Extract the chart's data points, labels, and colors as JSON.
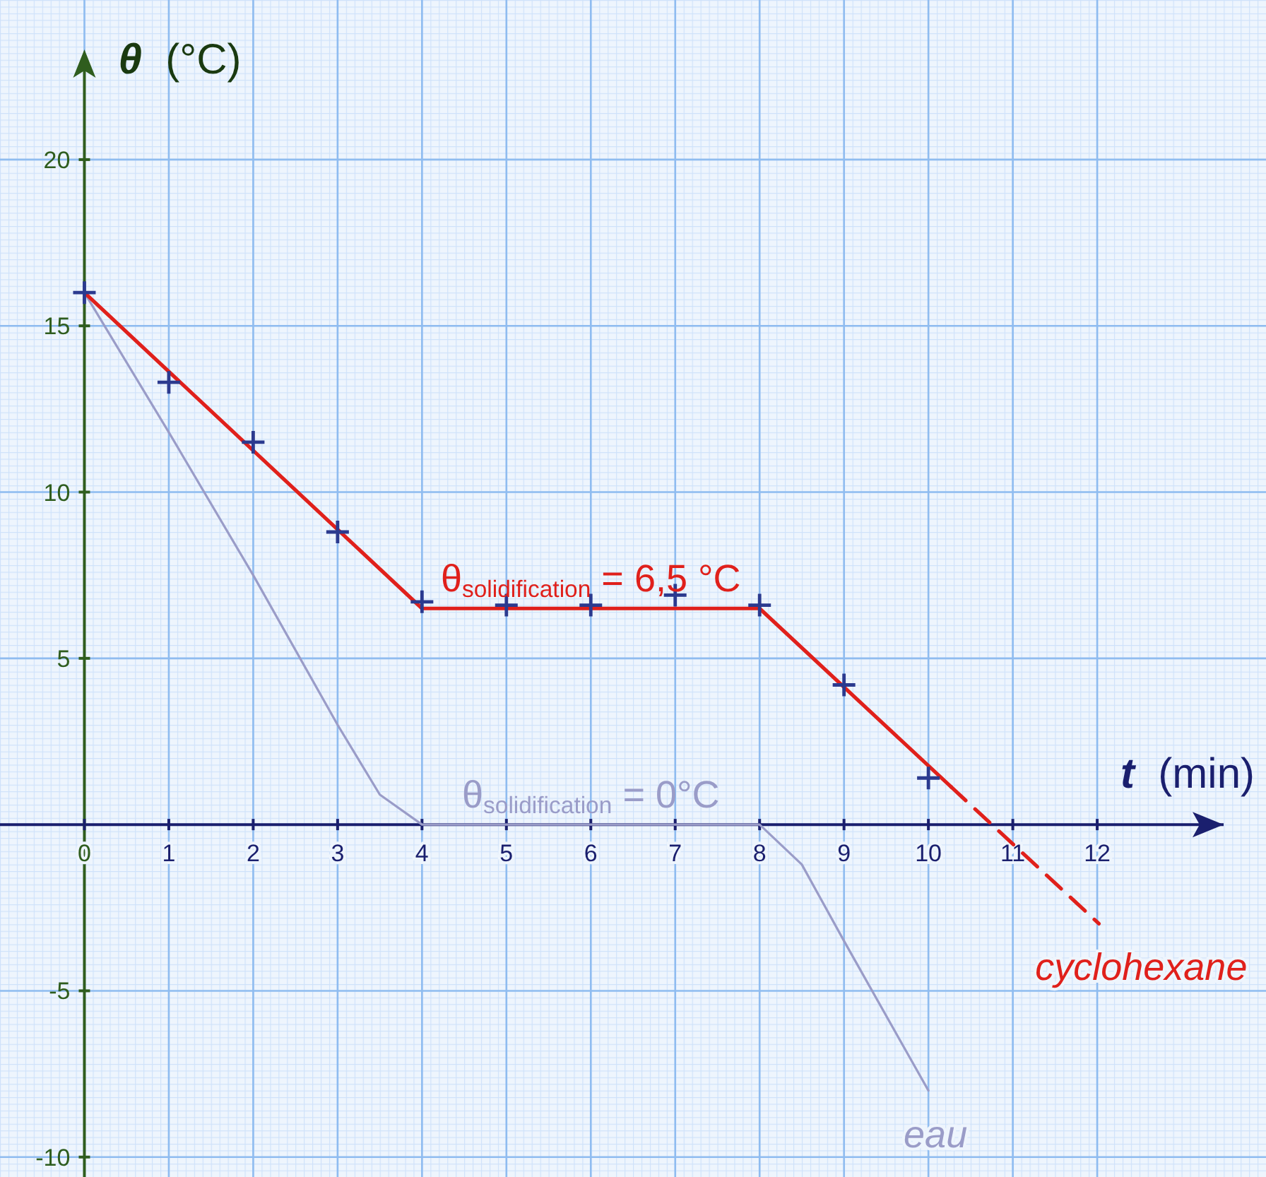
{
  "chart_data": {
    "type": "line",
    "xlabel": "t (min)",
    "ylabel": "θ (°C)",
    "xlim": [
      -1,
      14
    ],
    "ylim": [
      -10.6,
      24.8
    ],
    "xticks": [
      0,
      1,
      2,
      3,
      4,
      5,
      6,
      7,
      8,
      9,
      10,
      11,
      12
    ],
    "yticks": [
      -10,
      -5,
      5,
      10,
      15,
      20
    ],
    "grid": true,
    "series": [
      {
        "name": "eau",
        "color": "#9a9cc8",
        "x": [
          0,
          1,
          2,
          3,
          3.5,
          4,
          8,
          8.5,
          9,
          10
        ],
        "values": [
          16,
          11.8,
          7.5,
          3.0,
          0.9,
          0,
          0,
          -1.2,
          -3.5,
          -8.0
        ]
      },
      {
        "name": "cyclohexane",
        "color": "#e0201b",
        "line_style": "solid",
        "x": [
          0,
          4,
          8,
          10.27
        ],
        "values": [
          16,
          6.5,
          6.5,
          1.13
        ]
      },
      {
        "type": "line",
        "color": "#e0201b",
        "line_style": "dashed",
        "x": [
          10.27,
          12.02
        ],
        "values": [
          1.13,
          -2.98
        ]
      },
      {
        "type": "scatter",
        "marker": "cross",
        "color": "#2b3a8f",
        "x": [
          0,
          1,
          2,
          3,
          4,
          5,
          6,
          7,
          8,
          9,
          10
        ],
        "values": [
          16,
          13.3,
          11.5,
          8.8,
          6.7,
          6.6,
          6.6,
          6.9,
          6.6,
          4.2,
          1.4
        ]
      }
    ],
    "annotations": [
      {
        "text": "θ$_{solidification}$ = 6,5 °C",
        "x": 6,
        "y": 6.5
      },
      {
        "text": "θ$_{solidification}$ = 0°C",
        "x": 6,
        "y": 0
      }
    ]
  }
}
